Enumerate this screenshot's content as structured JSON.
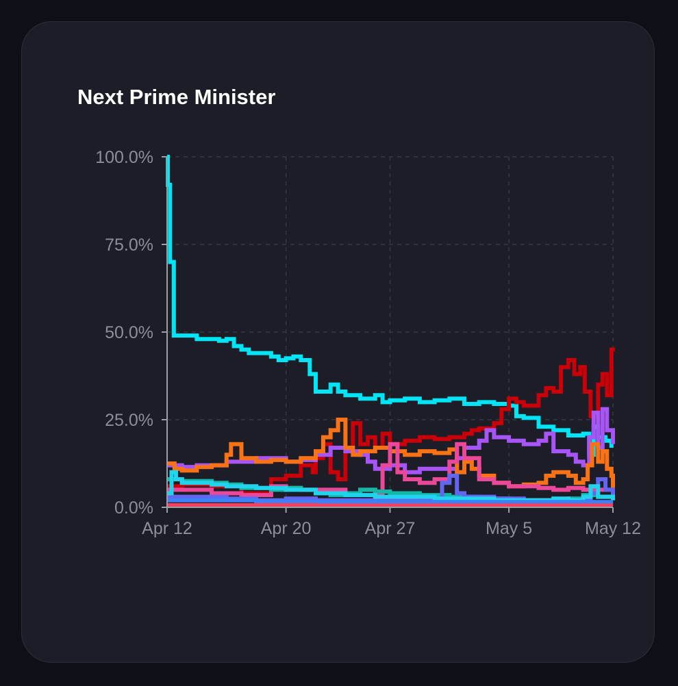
{
  "card": {
    "title": "Next Prime Minister"
  },
  "colors": {
    "page_background": "#0d1017",
    "card_background": "#1c1d26",
    "grid": "#343744",
    "axis": "#9aa0a6",
    "tick_text": "#8b8f99"
  },
  "chart_data": {
    "type": "line",
    "title": "Next Prime Minister",
    "xlabel": "",
    "ylabel": "",
    "x_axis": {
      "ticks": [
        "Apr 12",
        "Apr 20",
        "Apr 27",
        "May 5",
        "May 12"
      ],
      "tick_days": [
        0,
        8,
        15,
        23,
        30
      ],
      "range_days": [
        0,
        30
      ]
    },
    "y_axis": {
      "ticks": [
        "0.0%",
        "25.0%",
        "50.0%",
        "75.0%",
        "100.0%"
      ],
      "tick_values": [
        0,
        25,
        50,
        75,
        100
      ],
      "ylim": [
        0,
        100
      ]
    },
    "grid": true,
    "legend": "none",
    "series": [
      {
        "color": "#00e5f5",
        "points": [
          [
            0,
            100
          ],
          [
            0.05,
            92
          ],
          [
            0.2,
            70
          ],
          [
            0.45,
            49
          ],
          [
            2,
            48
          ],
          [
            3.5,
            47.5
          ],
          [
            4,
            48
          ],
          [
            4.5,
            46
          ],
          [
            5,
            45
          ],
          [
            5.5,
            44
          ],
          [
            7,
            43
          ],
          [
            7.5,
            42
          ],
          [
            8,
            42.5
          ],
          [
            8.5,
            43
          ],
          [
            9,
            42
          ],
          [
            9.6,
            38
          ],
          [
            10,
            33
          ],
          [
            11,
            35
          ],
          [
            11.5,
            33
          ],
          [
            12,
            32
          ],
          [
            13,
            31
          ],
          [
            14,
            32
          ],
          [
            14.5,
            30
          ],
          [
            15,
            30.5
          ],
          [
            16,
            31
          ],
          [
            17,
            30
          ],
          [
            18,
            30.5
          ],
          [
            19,
            31
          ],
          [
            20,
            29.5
          ],
          [
            21,
            30
          ],
          [
            22,
            29.5
          ],
          [
            23,
            29
          ],
          [
            23.5,
            26
          ],
          [
            24,
            25.5
          ],
          [
            25,
            23
          ],
          [
            26,
            22
          ],
          [
            27,
            20.5
          ],
          [
            28,
            21
          ],
          [
            28.4,
            15
          ],
          [
            28.7,
            23
          ],
          [
            29,
            20
          ],
          [
            29.5,
            19
          ],
          [
            29.9,
            17
          ]
        ]
      },
      {
        "color": "#c90008",
        "points": [
          [
            0,
            6
          ],
          [
            1,
            6.5
          ],
          [
            3,
            6
          ],
          [
            5,
            4
          ],
          [
            7,
            8
          ],
          [
            8,
            9
          ],
          [
            9,
            12
          ],
          [
            9.8,
            10
          ],
          [
            10,
            14
          ],
          [
            10.5,
            18
          ],
          [
            11,
            10
          ],
          [
            11.5,
            8
          ],
          [
            12,
            16
          ],
          [
            12.5,
            24
          ],
          [
            13,
            18
          ],
          [
            13.5,
            20
          ],
          [
            14,
            17
          ],
          [
            14.5,
            21
          ],
          [
            15,
            18
          ],
          [
            16,
            19
          ],
          [
            17,
            20
          ],
          [
            18,
            19.5
          ],
          [
            19,
            20
          ],
          [
            20,
            21
          ],
          [
            20.5,
            22
          ],
          [
            21,
            22.5
          ],
          [
            22,
            24
          ],
          [
            22.5,
            28
          ],
          [
            23,
            31
          ],
          [
            23.5,
            30
          ],
          [
            24,
            29
          ],
          [
            25,
            32
          ],
          [
            25.5,
            34
          ],
          [
            26,
            33
          ],
          [
            26.5,
            40
          ],
          [
            27,
            42
          ],
          [
            27.4,
            38
          ],
          [
            27.8,
            40
          ],
          [
            28.1,
            33
          ],
          [
            28.5,
            26
          ],
          [
            29,
            35
          ],
          [
            29.3,
            38
          ],
          [
            29.6,
            32
          ],
          [
            29.9,
            45
          ],
          [
            30,
            44.5
          ]
        ]
      },
      {
        "color": "#a855f7",
        "points": [
          [
            0,
            12
          ],
          [
            1,
            11.5
          ],
          [
            2,
            12
          ],
          [
            4,
            13
          ],
          [
            5,
            13
          ],
          [
            6,
            14
          ],
          [
            8,
            13
          ],
          [
            9,
            13.5
          ],
          [
            10,
            15
          ],
          [
            11,
            17
          ],
          [
            12,
            16
          ],
          [
            13,
            15
          ],
          [
            13.5,
            13
          ],
          [
            14,
            11
          ],
          [
            15,
            12
          ],
          [
            16,
            10
          ],
          [
            17,
            11
          ],
          [
            19,
            11
          ],
          [
            19.5,
            14
          ],
          [
            20,
            17
          ],
          [
            21,
            19
          ],
          [
            21.5,
            22
          ],
          [
            22,
            20
          ],
          [
            23,
            19
          ],
          [
            24,
            18
          ],
          [
            25,
            19
          ],
          [
            25.5,
            21
          ],
          [
            26,
            16
          ],
          [
            27,
            15
          ],
          [
            27.5,
            13
          ],
          [
            28,
            12
          ],
          [
            28.4,
            20
          ],
          [
            28.7,
            27
          ],
          [
            29,
            17
          ],
          [
            29.3,
            28
          ],
          [
            29.6,
            22
          ],
          [
            30,
            18
          ]
        ]
      },
      {
        "color": "#f97316",
        "points": [
          [
            0,
            12.5
          ],
          [
            0.5,
            11
          ],
          [
            1,
            10.5
          ],
          [
            2,
            11.5
          ],
          [
            3,
            12
          ],
          [
            4,
            15
          ],
          [
            4.3,
            18
          ],
          [
            5,
            14
          ],
          [
            6,
            13
          ],
          [
            7,
            13.5
          ],
          [
            8,
            13
          ],
          [
            9,
            14
          ],
          [
            10,
            16
          ],
          [
            10.5,
            20
          ],
          [
            11,
            22
          ],
          [
            11.5,
            25
          ],
          [
            12,
            17
          ],
          [
            12.5,
            15
          ],
          [
            13,
            16
          ],
          [
            14,
            17
          ],
          [
            15,
            16
          ],
          [
            16,
            15
          ],
          [
            17,
            16
          ],
          [
            18,
            15.5
          ],
          [
            19,
            16.5
          ],
          [
            19.5,
            10
          ],
          [
            20,
            13
          ],
          [
            20.5,
            11
          ],
          [
            21,
            9
          ],
          [
            22,
            7
          ],
          [
            23,
            6
          ],
          [
            24,
            6.5
          ],
          [
            25,
            7
          ],
          [
            25.5,
            9
          ],
          [
            26,
            10
          ],
          [
            27,
            9
          ],
          [
            27.5,
            7
          ],
          [
            28,
            8
          ],
          [
            28.3,
            12
          ],
          [
            28.6,
            18
          ],
          [
            29,
            13
          ],
          [
            29.3,
            16
          ],
          [
            29.6,
            11
          ],
          [
            29.9,
            9
          ],
          [
            30,
            4
          ]
        ]
      },
      {
        "color": "#ec4899",
        "points": [
          [
            0,
            5
          ],
          [
            1,
            5
          ],
          [
            3,
            4
          ],
          [
            5,
            3.5
          ],
          [
            7,
            6
          ],
          [
            8,
            5.5
          ],
          [
            9,
            5
          ],
          [
            11,
            5
          ],
          [
            12,
            4
          ],
          [
            13,
            5
          ],
          [
            14,
            4
          ],
          [
            14.5,
            12
          ],
          [
            15,
            18
          ],
          [
            15.5,
            10
          ],
          [
            16,
            8
          ],
          [
            17,
            7
          ],
          [
            18,
            8
          ],
          [
            19,
            13
          ],
          [
            19.5,
            18
          ],
          [
            20,
            14
          ],
          [
            21,
            8
          ],
          [
            22,
            7
          ],
          [
            23,
            6
          ],
          [
            24,
            6
          ],
          [
            25,
            5.5
          ],
          [
            26,
            5
          ],
          [
            27,
            5.5
          ],
          [
            28,
            5
          ],
          [
            29,
            5
          ],
          [
            30,
            4
          ]
        ]
      },
      {
        "color": "#14b8a6",
        "points": [
          [
            0,
            8
          ],
          [
            1,
            7.5
          ],
          [
            3,
            7
          ],
          [
            4,
            6.5
          ],
          [
            5,
            5.5
          ],
          [
            7,
            5
          ],
          [
            8,
            5.5
          ],
          [
            9,
            5
          ],
          [
            10,
            4
          ],
          [
            11,
            3.5
          ],
          [
            12,
            4
          ],
          [
            13,
            5
          ],
          [
            14,
            4.5
          ],
          [
            15,
            4
          ],
          [
            17,
            3.5
          ],
          [
            19,
            3
          ],
          [
            21,
            2.5
          ],
          [
            23,
            2
          ],
          [
            25,
            2
          ],
          [
            27,
            2.5
          ],
          [
            28,
            3.5
          ],
          [
            29,
            3
          ],
          [
            30,
            2.5
          ]
        ]
      },
      {
        "color": "#6366f1",
        "points": [
          [
            0,
            3
          ],
          [
            2,
            3
          ],
          [
            4,
            2.5
          ],
          [
            6,
            2
          ],
          [
            8,
            2.5
          ],
          [
            10,
            2
          ],
          [
            12,
            2
          ],
          [
            14,
            2.5
          ],
          [
            16,
            2
          ],
          [
            18,
            2.5
          ],
          [
            18.5,
            7
          ],
          [
            19,
            9
          ],
          [
            19.5,
            4
          ],
          [
            20,
            3
          ],
          [
            22,
            2.5
          ],
          [
            24,
            2
          ],
          [
            26,
            2
          ],
          [
            28,
            2.5
          ],
          [
            28.5,
            4
          ],
          [
            29,
            8
          ],
          [
            29.5,
            5
          ],
          [
            30,
            3
          ]
        ]
      },
      {
        "color": "#22d3ee",
        "points": [
          [
            0,
            4
          ],
          [
            0.3,
            10
          ],
          [
            0.6,
            8
          ],
          [
            1,
            7
          ],
          [
            2,
            7
          ],
          [
            3,
            6.5
          ],
          [
            4,
            6
          ],
          [
            6,
            5.5
          ],
          [
            8,
            5
          ],
          [
            10,
            4
          ],
          [
            12,
            3.5
          ],
          [
            14,
            3
          ],
          [
            16,
            3
          ],
          [
            18,
            2.5
          ],
          [
            20,
            2.5
          ],
          [
            22,
            2
          ],
          [
            24,
            2
          ],
          [
            26,
            2.5
          ],
          [
            27,
            2
          ],
          [
            28,
            3
          ],
          [
            28.5,
            6
          ],
          [
            29,
            3
          ],
          [
            30,
            2
          ]
        ]
      },
      {
        "color": "#3b82f6",
        "points": [
          [
            0,
            2
          ],
          [
            3,
            2
          ],
          [
            6,
            1.5
          ],
          [
            9,
            1.5
          ],
          [
            12,
            1.5
          ],
          [
            15,
            1.5
          ],
          [
            18,
            1.5
          ],
          [
            21,
            1.5
          ],
          [
            24,
            1.5
          ],
          [
            27,
            1.5
          ],
          [
            30,
            1.5
          ]
        ]
      },
      {
        "color": "#f43f5e",
        "points": [
          [
            0,
            0.6
          ],
          [
            5,
            0.6
          ],
          [
            10,
            0.5
          ],
          [
            15,
            0.5
          ],
          [
            20,
            0.5
          ],
          [
            25,
            0.5
          ],
          [
            30,
            0.5
          ]
        ]
      }
    ]
  }
}
